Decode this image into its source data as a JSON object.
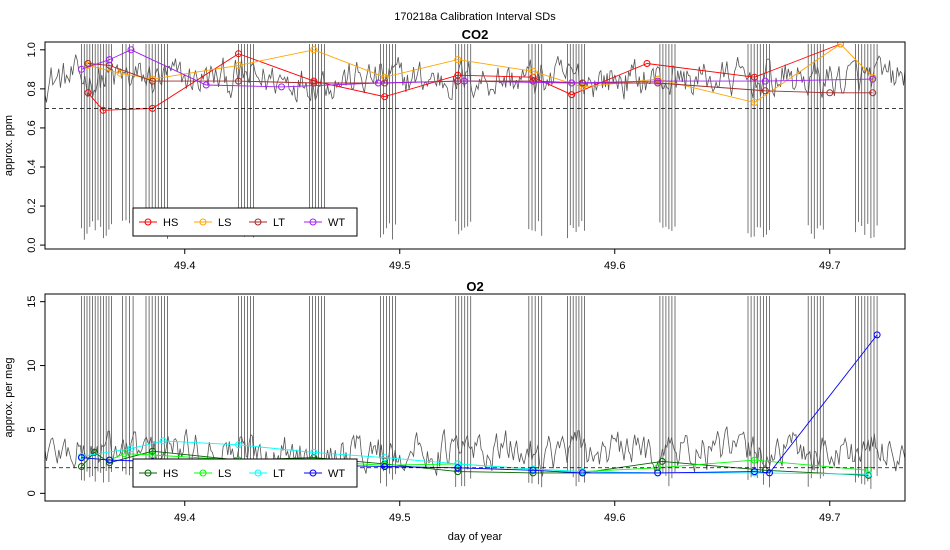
{
  "figure_title": "170218a   Calibration Interval SDs",
  "colors": {
    "noise": "#555555",
    "co2_HS": "#ff0000",
    "co2_LS": "#ffa500",
    "co2_LT": "#a52a2a",
    "co2_WT": "#a020f0",
    "o2_HS": "#006400",
    "o2_LS": "#00ff00",
    "o2_LT": "#00ffff",
    "o2_WT": "#0000ff"
  },
  "chart_data": [
    {
      "type": "line",
      "title": "CO2",
      "xlabel": "",
      "ylabel": "approx. ppm",
      "xlim": [
        49.335,
        49.735
      ],
      "ylim": [
        -0.02,
        1.04
      ],
      "xticks": [
        "49.4",
        "49.5",
        "49.6",
        "49.7"
      ],
      "yticks": [
        "0.0",
        "0.2",
        "0.4",
        "0.6",
        "0.8",
        "1.0"
      ],
      "reference_line": 0.7,
      "legend_position": "bottom-left",
      "noise_baseline": 0.85,
      "noise_amplitude": 0.08,
      "spike_bands": [
        [
          49.352,
          49.366
        ],
        [
          49.371,
          49.376
        ],
        [
          49.382,
          49.392
        ],
        [
          49.425,
          49.432
        ],
        [
          49.458,
          49.465
        ],
        [
          49.491,
          49.498
        ],
        [
          49.526,
          49.533
        ],
        [
          49.56,
          49.566
        ],
        [
          49.578,
          49.586
        ],
        [
          49.621,
          49.628
        ],
        [
          49.662,
          49.672
        ],
        [
          49.69,
          49.697
        ],
        [
          49.712,
          49.722
        ]
      ],
      "series": [
        {
          "name": "HS",
          "color_key": "co2_HS",
          "x": [
            49.355,
            49.362,
            49.385,
            49.425,
            49.46,
            49.493,
            49.527,
            49.562,
            49.58,
            49.615,
            49.665,
            49.705
          ],
          "y": [
            0.78,
            0.69,
            0.7,
            0.98,
            0.84,
            0.76,
            0.87,
            0.86,
            0.77,
            0.93,
            0.86,
            1.03
          ]
        },
        {
          "name": "LS",
          "color_key": "co2_LS",
          "x": [
            49.355,
            49.37,
            49.385,
            49.425,
            49.46,
            49.493,
            49.527,
            49.562,
            49.585,
            49.62,
            49.665,
            49.705,
            49.72
          ],
          "y": [
            0.92,
            0.88,
            0.85,
            0.92,
            1.0,
            0.86,
            0.95,
            0.89,
            0.81,
            0.85,
            0.73,
            1.03,
            0.86
          ]
        },
        {
          "name": "LT",
          "color_key": "co2_LT",
          "x": [
            49.355,
            49.365,
            49.385,
            49.425,
            49.46,
            49.493,
            49.527,
            49.562,
            49.585,
            49.62,
            49.67,
            49.7,
            49.72
          ],
          "y": [
            0.93,
            0.92,
            0.84,
            0.84,
            0.83,
            0.83,
            0.84,
            0.84,
            0.83,
            0.83,
            0.79,
            0.78,
            0.78
          ]
        },
        {
          "name": "WT",
          "color_key": "co2_WT",
          "x": [
            49.352,
            49.365,
            49.375,
            49.41,
            49.445,
            49.49,
            49.53,
            49.58,
            49.62,
            49.67,
            49.72
          ],
          "y": [
            0.9,
            0.95,
            1.0,
            0.82,
            0.81,
            0.83,
            0.84,
            0.83,
            0.84,
            0.84,
            0.85
          ]
        }
      ]
    },
    {
      "type": "line",
      "title": "O2",
      "xlabel": "day of year",
      "ylabel": "approx. per meg",
      "xlim": [
        49.335,
        49.735
      ],
      "ylim": [
        -0.6,
        15.6
      ],
      "xticks": [
        "49.4",
        "49.5",
        "49.6",
        "49.7"
      ],
      "yticks": [
        "0",
        "5",
        "10",
        "15"
      ],
      "reference_line": 2.0,
      "legend_position": "bottom-left",
      "noise_baseline": 3.3,
      "noise_amplitude": 1.2,
      "spike_bands": [
        [
          49.352,
          49.366
        ],
        [
          49.371,
          49.376
        ],
        [
          49.382,
          49.392
        ],
        [
          49.425,
          49.432
        ],
        [
          49.458,
          49.465
        ],
        [
          49.491,
          49.498
        ],
        [
          49.526,
          49.533
        ],
        [
          49.56,
          49.566
        ],
        [
          49.578,
          49.586
        ],
        [
          49.621,
          49.628
        ],
        [
          49.662,
          49.672
        ],
        [
          49.69,
          49.697
        ],
        [
          49.712,
          49.722
        ]
      ],
      "series": [
        {
          "name": "HS",
          "color_key": "o2_HS",
          "x": [
            49.352,
            49.358,
            49.365,
            49.385,
            49.425,
            49.46,
            49.493,
            49.527,
            49.562,
            49.585,
            49.622,
            49.67,
            49.718
          ],
          "y": [
            2.1,
            3.2,
            2.4,
            3.3,
            2.6,
            2.8,
            2.3,
            1.7,
            1.6,
            1.6,
            2.5,
            1.8,
            1.4
          ]
        },
        {
          "name": "LS",
          "color_key": "o2_LS",
          "x": [
            49.352,
            49.365,
            49.372,
            49.385,
            49.425,
            49.46,
            49.493,
            49.527,
            49.562,
            49.585,
            49.62,
            49.665,
            49.718
          ],
          "y": [
            2.8,
            2.6,
            3.1,
            3.0,
            2.6,
            2.5,
            2.2,
            2.3,
            1.9,
            1.7,
            2.0,
            2.6,
            1.8
          ]
        },
        {
          "name": "LT",
          "color_key": "o2_LT",
          "x": [
            49.352,
            49.375,
            49.39,
            49.425,
            49.46,
            49.493,
            49.527,
            49.562,
            49.585,
            49.62,
            49.665,
            49.718
          ],
          "y": [
            2.9,
            3.5,
            4.1,
            3.8,
            3.2,
            2.8,
            2.3,
            1.9,
            1.7,
            1.6,
            1.6,
            1.5
          ]
        },
        {
          "name": "WT",
          "color_key": "o2_WT",
          "x": [
            49.352,
            49.365,
            49.385,
            49.425,
            49.46,
            49.493,
            49.527,
            49.562,
            49.585,
            49.62,
            49.665,
            49.672,
            49.722
          ],
          "y": [
            2.8,
            2.6,
            2.5,
            2.3,
            2.2,
            2.1,
            2.0,
            1.8,
            1.6,
            1.6,
            1.7,
            1.6,
            12.4
          ]
        }
      ]
    }
  ]
}
